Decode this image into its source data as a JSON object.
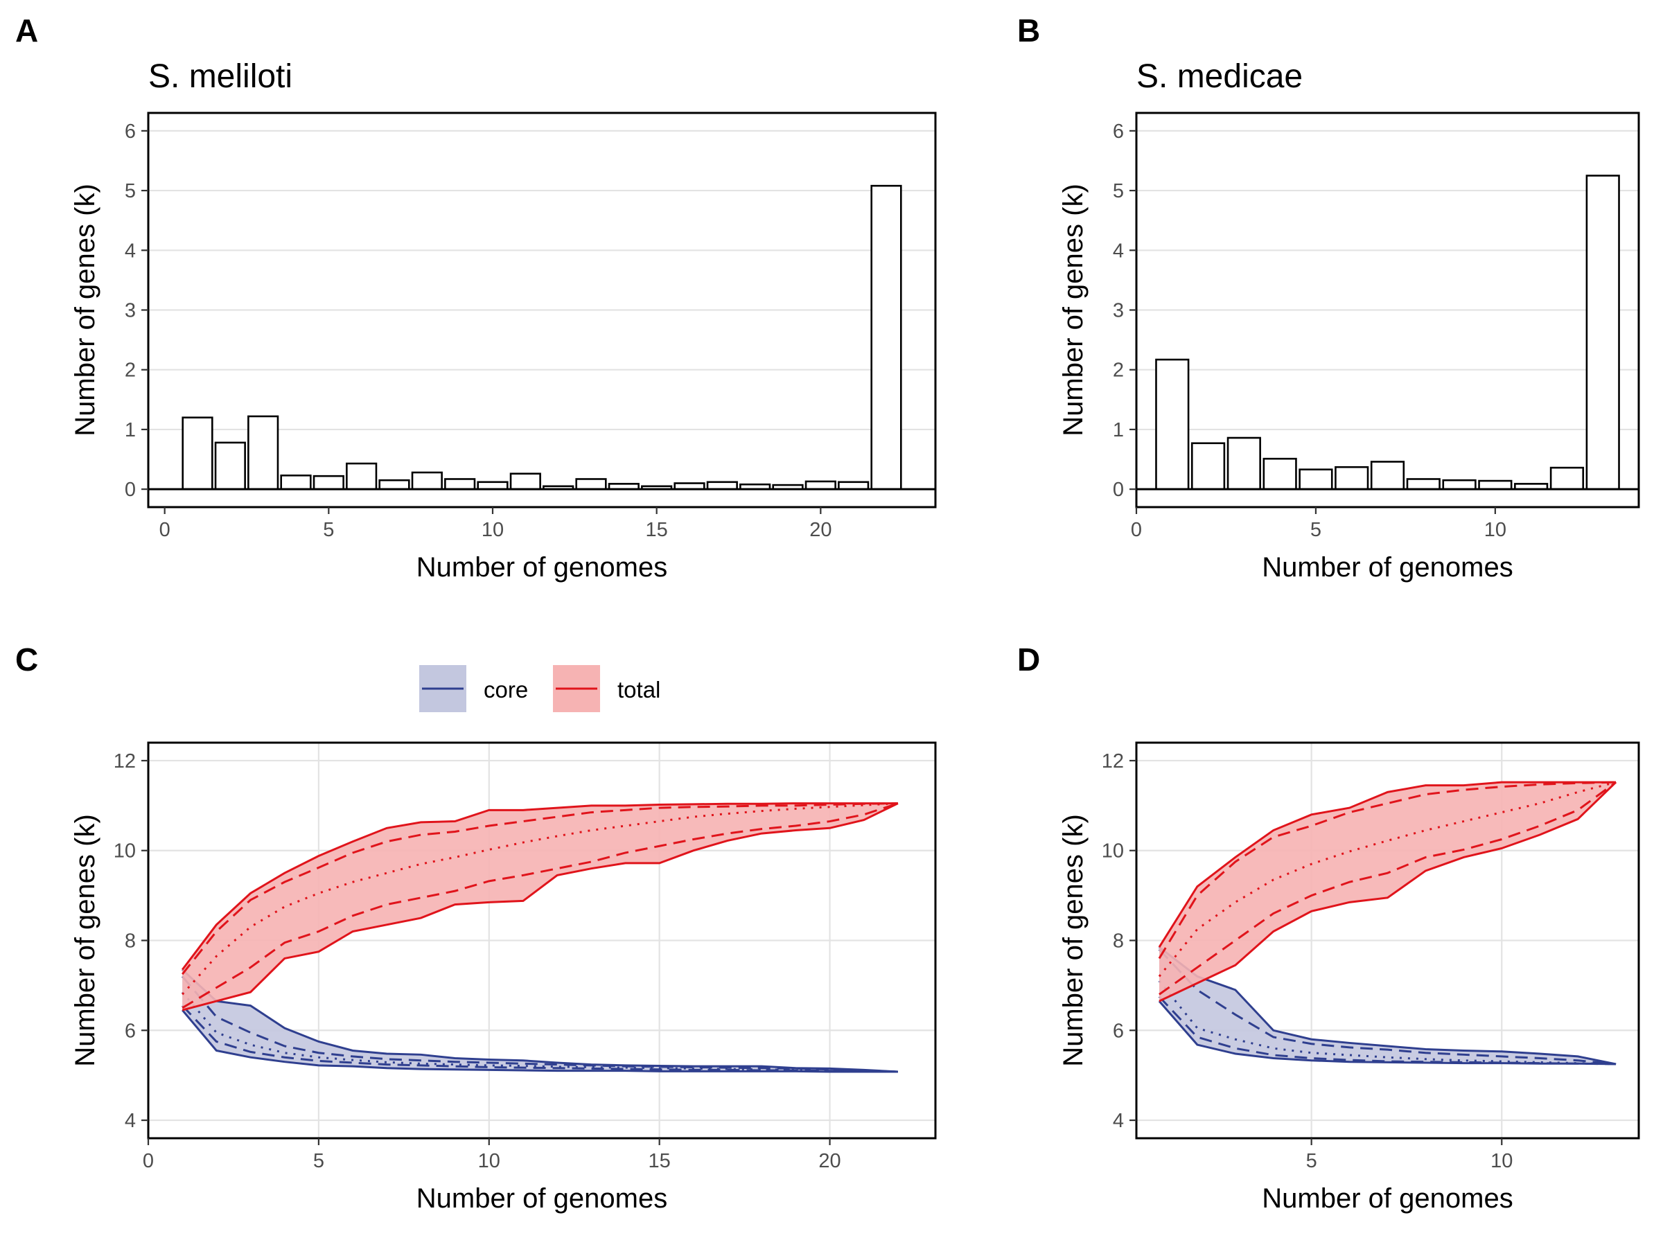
{
  "colors": {
    "core": "#2f3f8f",
    "total": "#e0141b",
    "core_fill": "#c3c7df",
    "total_fill": "#f6b3b3"
  },
  "legend": {
    "core_label": "core",
    "total_label": "total"
  },
  "panels": {
    "A": {
      "letter": "A",
      "title": "S. meliloti"
    },
    "B": {
      "letter": "B",
      "title": "S. medicae"
    },
    "C": {
      "letter": "C"
    },
    "D": {
      "letter": "D"
    }
  },
  "chart_data": [
    {
      "id": "A",
      "type": "bar",
      "title": "S. meliloti",
      "xlabel": "Number of genomes",
      "ylabel": "Number of genes (k)",
      "xlim": [
        -0.5,
        23.5
      ],
      "ylim": [
        -0.3,
        6.3
      ],
      "xticks": [
        0,
        5,
        10,
        15,
        20
      ],
      "yticks": [
        0,
        1,
        2,
        3,
        4,
        5,
        6
      ],
      "x": [
        1,
        2,
        3,
        4,
        5,
        6,
        7,
        8,
        9,
        10,
        11,
        12,
        13,
        14,
        15,
        16,
        17,
        18,
        19,
        20,
        21,
        22
      ],
      "values": [
        1.2,
        0.78,
        1.22,
        0.23,
        0.22,
        0.43,
        0.15,
        0.28,
        0.17,
        0.12,
        0.26,
        0.05,
        0.17,
        0.09,
        0.05,
        0.1,
        0.12,
        0.08,
        0.07,
        0.13,
        0.12,
        5.08
      ],
      "grid": true
    },
    {
      "id": "B",
      "type": "bar",
      "title": "S. medicae",
      "xlabel": "Number of genomes",
      "ylabel": "Number of genes (k)",
      "xlim": [
        0,
        14
      ],
      "ylim": [
        -0.3,
        6.3
      ],
      "xticks": [
        0,
        5,
        10
      ],
      "yticks": [
        0,
        1,
        2,
        3,
        4,
        5,
        6
      ],
      "x": [
        1,
        2,
        3,
        4,
        5,
        6,
        7,
        8,
        9,
        10,
        11,
        12,
        13
      ],
      "values": [
        2.17,
        0.77,
        0.86,
        0.51,
        0.33,
        0.37,
        0.46,
        0.17,
        0.15,
        0.14,
        0.09,
        0.36,
        5.25
      ],
      "grid": true
    },
    {
      "id": "C",
      "type": "area",
      "xlabel": "Number of genomes",
      "ylabel": "Number of genes (k)",
      "xlim": [
        0,
        23.1
      ],
      "ylim": [
        3.6,
        12.4
      ],
      "xticks": [
        0,
        5,
        10,
        15,
        20
      ],
      "yticks": [
        4,
        6,
        8,
        10,
        12
      ],
      "legend_position": "top",
      "grid": true,
      "series": [
        {
          "name": "core",
          "x": [
            1,
            2,
            3,
            4,
            5,
            6,
            7,
            8,
            9,
            10,
            11,
            12,
            13,
            14,
            15,
            16,
            17,
            18,
            19,
            20,
            21,
            22
          ],
          "max": [
            7.35,
            6.65,
            6.55,
            6.05,
            5.75,
            5.55,
            5.48,
            5.46,
            5.38,
            5.35,
            5.33,
            5.28,
            5.24,
            5.22,
            5.21,
            5.2,
            5.2,
            5.2,
            5.16,
            5.15,
            5.12,
            5.08
          ],
          "min": [
            6.45,
            5.55,
            5.4,
            5.3,
            5.22,
            5.2,
            5.16,
            5.14,
            5.13,
            5.12,
            5.11,
            5.1,
            5.1,
            5.1,
            5.09,
            5.09,
            5.09,
            5.09,
            5.09,
            5.08,
            5.08,
            5.08
          ],
          "q_upper": [
            7.2,
            6.3,
            5.95,
            5.65,
            5.5,
            5.42,
            5.36,
            5.33,
            5.3,
            5.28,
            5.26,
            5.24,
            5.22,
            5.2,
            5.19,
            5.18,
            5.17,
            5.16,
            5.15,
            5.13,
            5.11,
            5.08
          ],
          "q_lower": [
            6.55,
            5.75,
            5.52,
            5.4,
            5.32,
            5.28,
            5.24,
            5.22,
            5.2,
            5.18,
            5.17,
            5.16,
            5.15,
            5.14,
            5.13,
            5.12,
            5.12,
            5.11,
            5.11,
            5.1,
            5.09,
            5.08
          ],
          "mean": [
            6.85,
            5.95,
            5.68,
            5.5,
            5.4,
            5.34,
            5.29,
            5.26,
            5.24,
            5.22,
            5.21,
            5.19,
            5.18,
            5.17,
            5.16,
            5.15,
            5.14,
            5.13,
            5.12,
            5.11,
            5.1,
            5.08
          ]
        },
        {
          "name": "total",
          "x": [
            1,
            2,
            3,
            4,
            5,
            6,
            7,
            8,
            9,
            10,
            11,
            12,
            13,
            14,
            15,
            16,
            17,
            18,
            19,
            20,
            21,
            22
          ],
          "max": [
            7.35,
            8.35,
            9.05,
            9.5,
            9.88,
            10.2,
            10.5,
            10.63,
            10.65,
            10.9,
            10.9,
            10.95,
            11.0,
            11.0,
            11.02,
            11.03,
            11.04,
            11.04,
            11.05,
            11.05,
            11.05,
            11.05
          ],
          "min": [
            6.45,
            6.65,
            6.85,
            7.6,
            7.75,
            8.2,
            8.35,
            8.5,
            8.8,
            8.85,
            8.88,
            9.45,
            9.6,
            9.72,
            9.72,
            10.0,
            10.22,
            10.38,
            10.45,
            10.5,
            10.68,
            11.05
          ],
          "q_upper": [
            7.25,
            8.2,
            8.9,
            9.3,
            9.62,
            9.95,
            10.2,
            10.35,
            10.42,
            10.55,
            10.65,
            10.75,
            10.85,
            10.9,
            10.95,
            10.97,
            10.98,
            11.0,
            11.0,
            11.02,
            11.04,
            11.05
          ],
          "q_lower": [
            6.5,
            6.95,
            7.4,
            7.95,
            8.2,
            8.55,
            8.8,
            8.95,
            9.1,
            9.32,
            9.45,
            9.6,
            9.75,
            9.95,
            10.1,
            10.25,
            10.38,
            10.48,
            10.55,
            10.65,
            10.8,
            11.05
          ],
          "mean": [
            6.8,
            7.65,
            8.3,
            8.75,
            9.05,
            9.3,
            9.5,
            9.7,
            9.85,
            10.02,
            10.18,
            10.32,
            10.45,
            10.55,
            10.65,
            10.75,
            10.82,
            10.88,
            10.93,
            10.97,
            11.01,
            11.05
          ]
        }
      ]
    },
    {
      "id": "D",
      "type": "area",
      "xlabel": "Number of genomes",
      "ylabel": "Number of genes (k)",
      "xlim": [
        0.4,
        13.6
      ],
      "ylim": [
        3.6,
        12.4
      ],
      "xticks": [
        5,
        10
      ],
      "yticks": [
        4,
        6,
        8,
        10,
        12
      ],
      "grid": true,
      "series": [
        {
          "name": "core",
          "x": [
            1,
            2,
            3,
            4,
            5,
            6,
            7,
            8,
            9,
            10,
            11,
            12,
            13
          ],
          "max": [
            7.85,
            7.2,
            6.9,
            6.0,
            5.8,
            5.72,
            5.65,
            5.58,
            5.55,
            5.53,
            5.48,
            5.42,
            5.25
          ],
          "min": [
            6.65,
            5.68,
            5.48,
            5.38,
            5.33,
            5.3,
            5.29,
            5.28,
            5.27,
            5.27,
            5.26,
            5.26,
            5.25
          ],
          "q_upper": [
            7.8,
            6.9,
            6.35,
            5.85,
            5.7,
            5.62,
            5.57,
            5.5,
            5.46,
            5.42,
            5.38,
            5.33,
            5.25
          ],
          "q_lower": [
            6.75,
            5.85,
            5.6,
            5.45,
            5.38,
            5.34,
            5.31,
            5.3,
            5.29,
            5.28,
            5.27,
            5.26,
            5.25
          ],
          "mean": [
            7.1,
            6.05,
            5.8,
            5.6,
            5.5,
            5.45,
            5.4,
            5.36,
            5.33,
            5.31,
            5.29,
            5.27,
            5.25
          ]
        },
        {
          "name": "total",
          "x": [
            1,
            2,
            3,
            4,
            5,
            6,
            7,
            8,
            9,
            10,
            11,
            12,
            13
          ],
          "max": [
            7.85,
            9.2,
            9.85,
            10.45,
            10.8,
            10.95,
            11.3,
            11.45,
            11.45,
            11.52,
            11.52,
            11.52,
            11.52
          ],
          "min": [
            6.65,
            7.05,
            7.45,
            8.2,
            8.65,
            8.85,
            8.95,
            9.55,
            9.85,
            10.05,
            10.35,
            10.7,
            11.52
          ],
          "q_upper": [
            7.6,
            9.0,
            9.75,
            10.3,
            10.55,
            10.85,
            11.05,
            11.25,
            11.35,
            11.42,
            11.47,
            11.5,
            11.52
          ],
          "q_lower": [
            6.8,
            7.4,
            8.0,
            8.6,
            9.0,
            9.3,
            9.5,
            9.85,
            10.02,
            10.25,
            10.55,
            10.9,
            11.52
          ],
          "mean": [
            7.2,
            8.25,
            8.85,
            9.35,
            9.7,
            9.98,
            10.22,
            10.45,
            10.65,
            10.85,
            11.05,
            11.3,
            11.52
          ]
        }
      ]
    }
  ]
}
